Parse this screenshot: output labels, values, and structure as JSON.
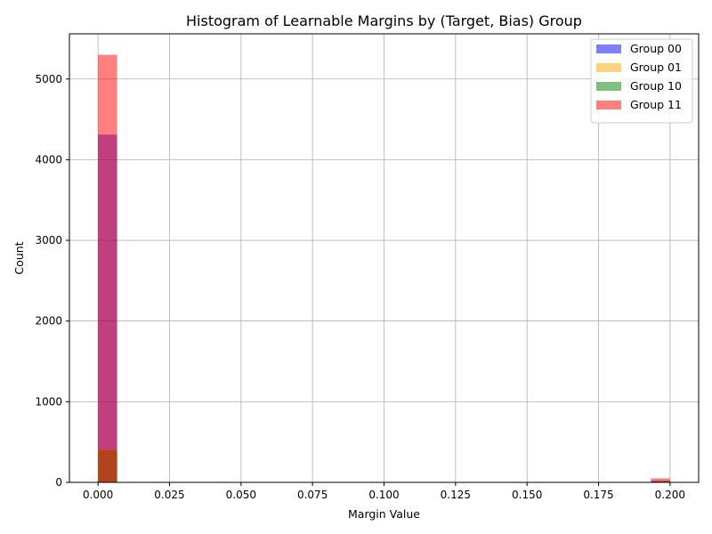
{
  "chart_data": {
    "type": "histogram",
    "title": "Histogram of Learnable Margins by (Target, Bias) Group",
    "xlabel": "Margin Value",
    "ylabel": "Count",
    "xlim": [
      -0.01,
      0.21
    ],
    "ylim": [
      0,
      5560
    ],
    "xticks": [
      0.0,
      0.025,
      0.05,
      0.075,
      0.1,
      0.125,
      0.15,
      0.175,
      0.2
    ],
    "xtick_labels": [
      "0.000",
      "0.025",
      "0.050",
      "0.075",
      "0.100",
      "0.125",
      "0.150",
      "0.175",
      "0.200"
    ],
    "yticks": [
      0,
      1000,
      2000,
      3000,
      4000,
      5000
    ],
    "ytick_labels": [
      "0",
      "1000",
      "2000",
      "3000",
      "4000",
      "5000"
    ],
    "grid": true,
    "legend_position": "top-right",
    "bin_edges": [
      0.0,
      0.00667,
      0.19333,
      0.2
    ],
    "series": [
      {
        "name": "Group 00",
        "color": "#0000ff",
        "alpha": 0.5,
        "bins": [
          {
            "x0": 0.0,
            "x1": 0.00667,
            "count": 4310
          },
          {
            "x0": 0.19333,
            "x1": 0.2,
            "count": 20
          }
        ]
      },
      {
        "name": "Group 01",
        "color": "#ffa500",
        "alpha": 0.5,
        "bins": [
          {
            "x0": 0.0,
            "x1": 0.00667,
            "count": 410
          },
          {
            "x0": 0.19333,
            "x1": 0.2,
            "count": 15
          }
        ]
      },
      {
        "name": "Group 10",
        "color": "#008000",
        "alpha": 0.5,
        "bins": [
          {
            "x0": 0.0,
            "x1": 0.00667,
            "count": 400
          },
          {
            "x0": 0.19333,
            "x1": 0.2,
            "count": 15
          }
        ]
      },
      {
        "name": "Group 11",
        "color": "#ff0000",
        "alpha": 0.5,
        "bins": [
          {
            "x0": 0.0,
            "x1": 0.00667,
            "count": 5300
          },
          {
            "x0": 0.19333,
            "x1": 0.2,
            "count": 50
          }
        ]
      }
    ]
  }
}
